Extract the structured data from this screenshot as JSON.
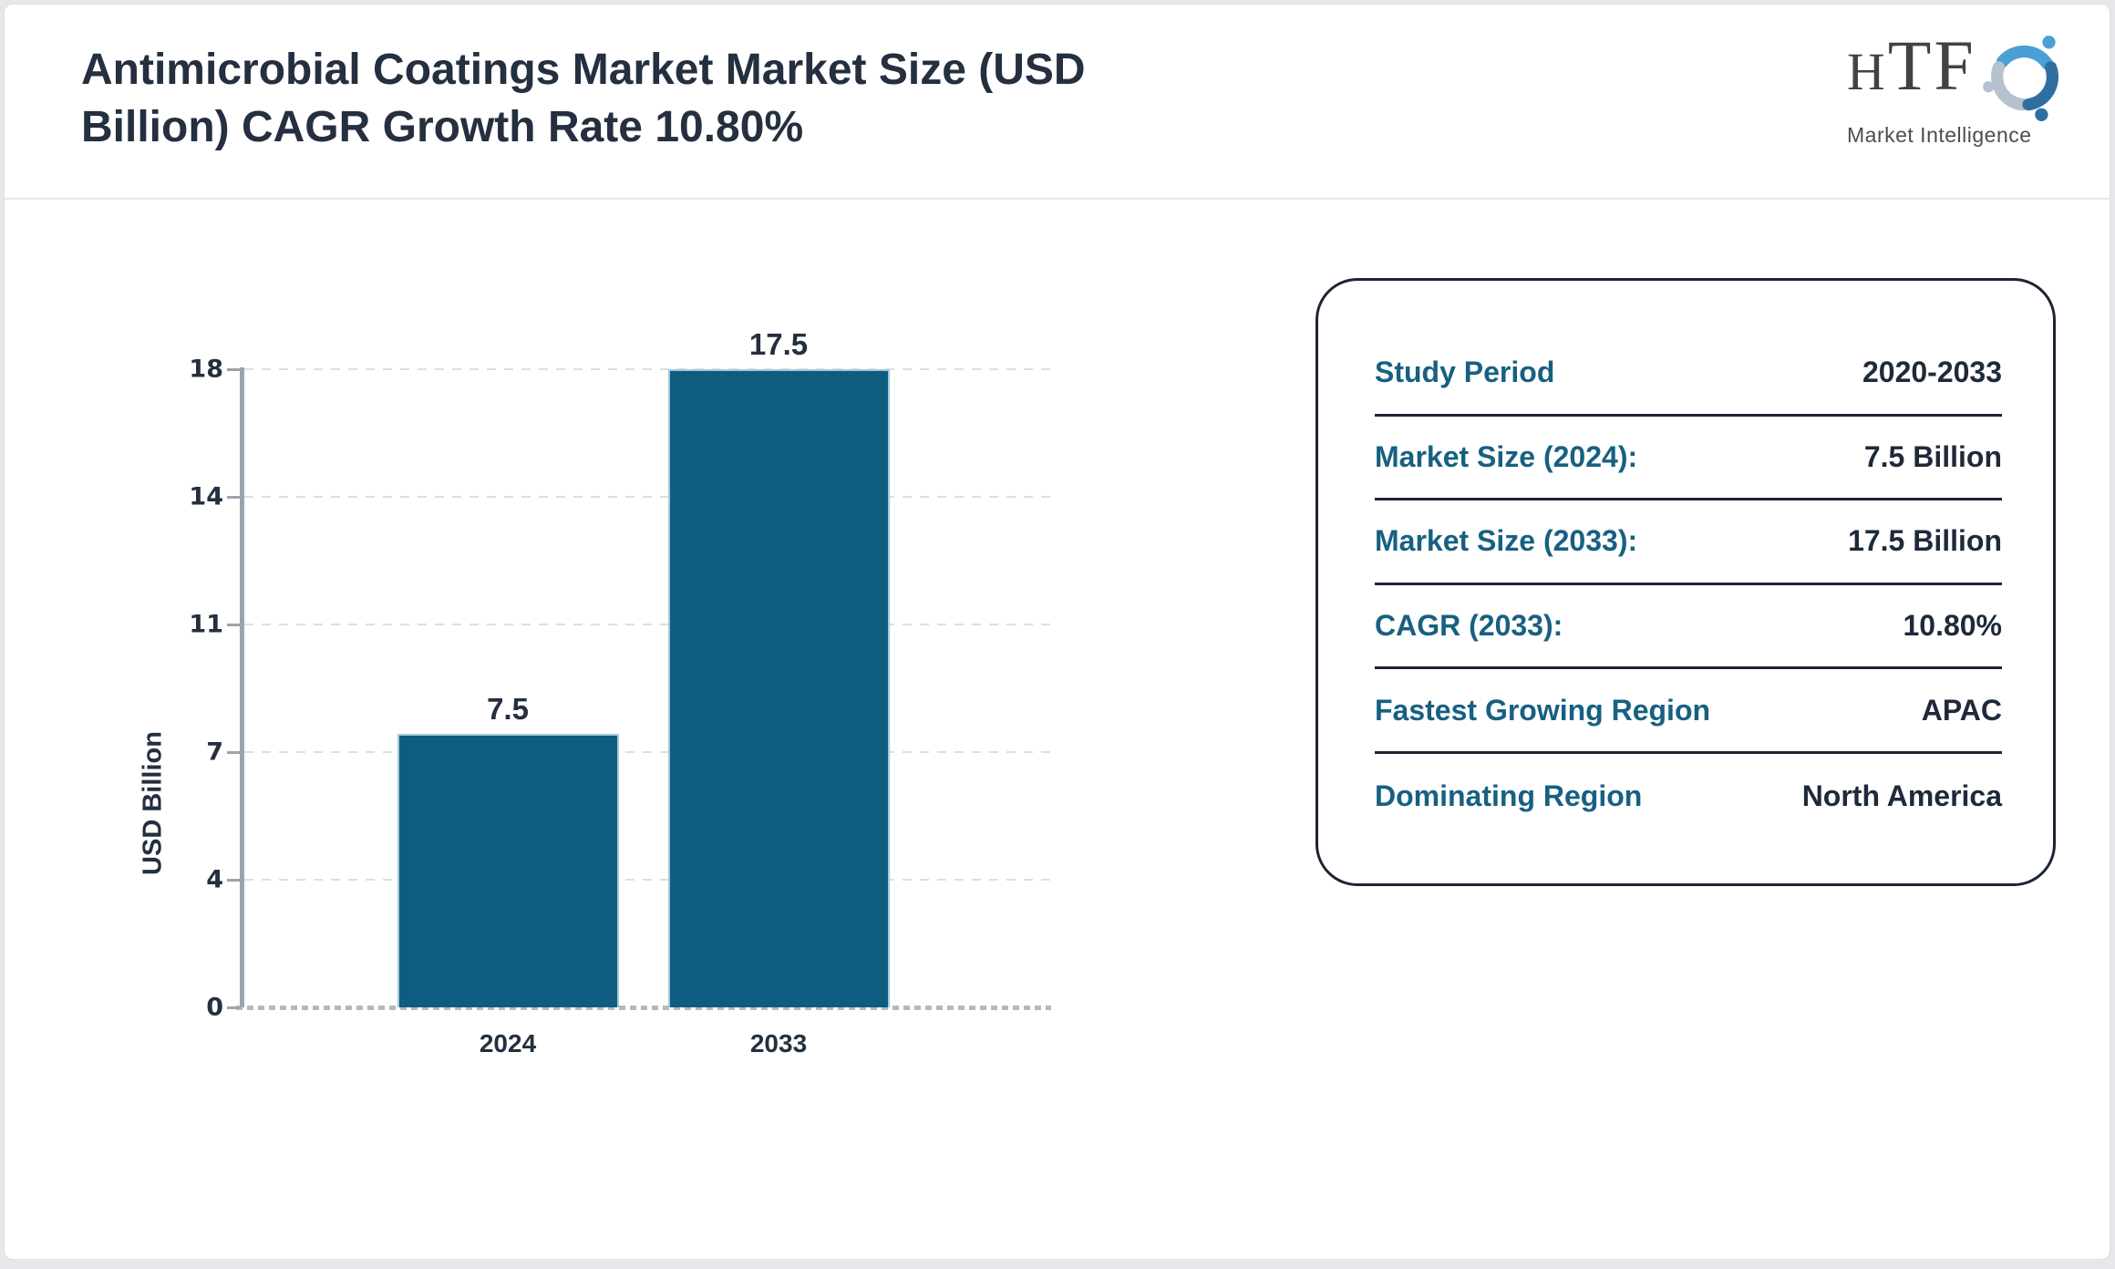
{
  "header": {
    "title": "Antimicrobial Coatings Market Market Size (USD Billion) CAGR Growth Rate 10.80%",
    "title_lines": [
      "Antimicrobial Coatings Market Market Size (USD",
      "Billion) CAGR Growth Rate 10.80%"
    ]
  },
  "logo": {
    "text": "HTF",
    "subtext": "Market Intelligence",
    "colors": {
      "swirl_light_blue": "#4aa0d5",
      "swirl_pale": "#b5c2cd",
      "swirl_dark_blue": "#2e6f9f",
      "text_gray": "#414245"
    }
  },
  "chart_data": {
    "type": "bar",
    "title": "",
    "categories": [
      "2024",
      "2033"
    ],
    "values": [
      7.5,
      17.5
    ],
    "value_labels": [
      "7.5",
      "17.5"
    ],
    "xlabel": "",
    "ylabel": "USD Billion",
    "ylim": [
      0,
      17.5
    ],
    "yticks": [
      {
        "value": 0,
        "label": "0"
      },
      {
        "value": 3.5,
        "label": "4"
      },
      {
        "value": 7,
        "label": "7"
      },
      {
        "value": 10.5,
        "label": "11"
      },
      {
        "value": 14,
        "label": "14"
      },
      {
        "value": 17.5,
        "label": "18"
      }
    ],
    "grid": true,
    "grid_style": "dashed",
    "legend": false,
    "bar_color": "#0e5d80",
    "bar_edge_color": "#a3cadc",
    "axis_color": "#9ba3ae",
    "text_color": "#242f3f"
  },
  "panel": {
    "label_color": "#176081",
    "value_color": "#1e2a3a",
    "rows": [
      {
        "label": "Study Period",
        "value": "2020-2033"
      },
      {
        "label": "Market Size (2024):",
        "value": "7.5 Billion"
      },
      {
        "label": "Market Size (2033):",
        "value": "17.5 Billion"
      },
      {
        "label": "CAGR (2033):",
        "value": "10.80%"
      },
      {
        "label": "Fastest Growing Region",
        "value": "APAC"
      },
      {
        "label": "Dominating Region",
        "value": "North America"
      }
    ]
  }
}
